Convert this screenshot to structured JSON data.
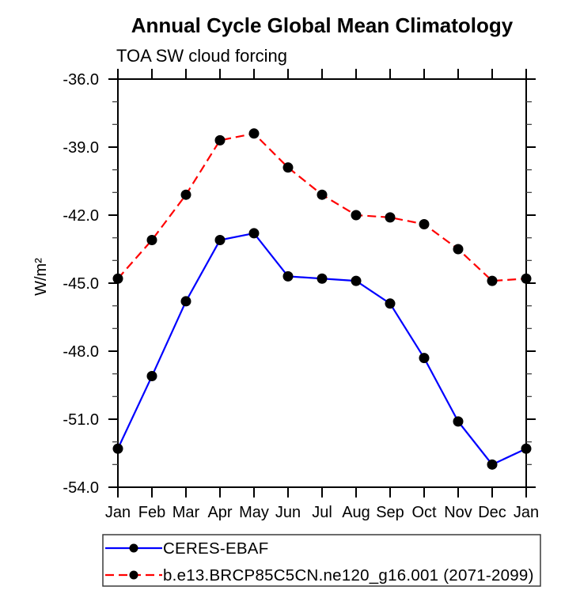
{
  "header": {
    "title": "Annual Cycle Global Mean Climatology",
    "subtitle": "TOA SW cloud forcing"
  },
  "chart_data": {
    "type": "line",
    "title": "Annual Cycle Global Mean Climatology",
    "subtitle": "TOA SW cloud forcing",
    "xlabel": "",
    "ylabel": "W/m²",
    "categories": [
      "Jan",
      "Feb",
      "Mar",
      "Apr",
      "May",
      "Jun",
      "Jul",
      "Aug",
      "Sep",
      "Oct",
      "Nov",
      "Dec",
      "Jan"
    ],
    "ylim": [
      -54.0,
      -36.0
    ],
    "ytick_major": [
      -36.0,
      -39.0,
      -42.0,
      -45.0,
      -48.0,
      -51.0,
      -54.0
    ],
    "ytick_minor_step": 1.0,
    "grid": false,
    "legend_position": "bottom-left",
    "colors": {
      "axis": "#000000",
      "text": "#000000",
      "marker": "#000000"
    },
    "series": [
      {
        "name": "CERES-EBAF",
        "color": "#0000ff",
        "line_style": "solid",
        "dash": "none",
        "marker": "circle",
        "marker_color": "#000000",
        "values": [
          -52.3,
          -49.1,
          -45.8,
          -43.1,
          -42.8,
          -44.7,
          -44.8,
          -44.9,
          -45.9,
          -48.3,
          -51.1,
          -53.0,
          -52.3
        ]
      },
      {
        "name": "b.e13.BRCP85C5CN.ne120_g16.001 (2071-2099)",
        "color": "#ff0000",
        "line_style": "dashed",
        "dash": "11 6",
        "marker": "circle",
        "marker_color": "#000000",
        "values": [
          -44.8,
          -43.1,
          -41.1,
          -38.7,
          -38.4,
          -39.9,
          -41.1,
          -42.0,
          -42.1,
          -42.4,
          -43.5,
          -44.9,
          -44.8
        ]
      }
    ]
  }
}
